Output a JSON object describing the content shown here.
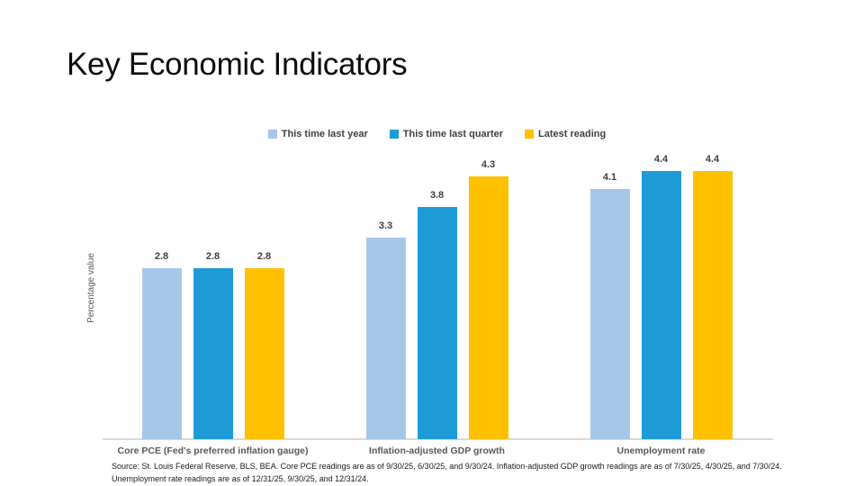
{
  "slide": {
    "title": "Key Economic Indicators",
    "source_line1": "Source: St. Louis Federal Reserve, BLS, BEA. Core PCE readings are as of 9/30/25, 6/30/25, and 9/30/24. Inflation-adjusted GDP growth readings are as of 7/30/25, 4/30/25, and 7/30/24.",
    "source_line2": "Unemployment rate readings are as of 12/31/25, 9/30/25, and 12/31/24."
  },
  "chart_data": {
    "type": "bar",
    "title": "",
    "xlabel": "",
    "ylabel": "Percentage value",
    "ylim": [
      0,
      5
    ],
    "grid": false,
    "legend_position": "top",
    "data_labels": true,
    "categories": [
      "Core PCE (Fed's preferred inflation gauge)",
      "Inflation-adjusted GDP growth",
      "Unemployment rate"
    ],
    "series": [
      {
        "name": "This time last year",
        "color": "#A7C7E9",
        "values": [
          2.8,
          3.3,
          4.1
        ]
      },
      {
        "name": "This time last quarter",
        "color": "#1E9BD7",
        "values": [
          2.8,
          3.8,
          4.4
        ]
      },
      {
        "name": "Latest reading",
        "color": "#FFC000",
        "values": [
          2.8,
          4.3,
          4.4
        ]
      }
    ],
    "colors": {
      "baseline": "#d9d9d9",
      "data_label": "#404040",
      "category_label": "#595959",
      "axis_label": "#595959"
    }
  }
}
